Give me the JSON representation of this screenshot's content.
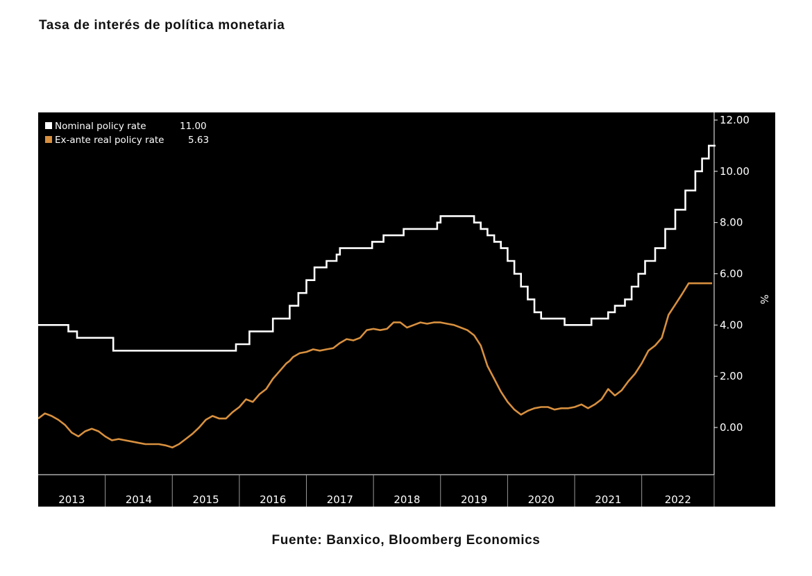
{
  "title": "Tasa de interés de política monetaria",
  "source": "Fuente: Banxico, Bloomberg Economics",
  "colors": {
    "background": "#000000",
    "nominal": "#ffffff",
    "real": "#d8903f",
    "axis": "#ffffff"
  },
  "chart_data": {
    "type": "line",
    "title": "",
    "xlabel": "",
    "ylabel": "%",
    "ylim": [
      -2,
      12
    ],
    "xlim": [
      2013.0,
      2023.08
    ],
    "y_ticks": [
      12,
      10,
      8,
      6,
      4,
      2,
      0
    ],
    "y_tick_labels": [
      "12.00",
      "10.00",
      "8.00",
      "6.00",
      "4.00",
      "2.00",
      "0.00"
    ],
    "x_tick_labels": [
      "2013",
      "2014",
      "2015",
      "2016",
      "2017",
      "2018",
      "2019",
      "2020",
      "2021",
      "2022"
    ],
    "x_ticks": [
      2013,
      2014,
      2015,
      2016,
      2017,
      2018,
      2019,
      2020,
      2021,
      2022
    ],
    "grid": false,
    "legend_position": "top-left",
    "series": [
      {
        "name": "Nominal policy rate",
        "legend_value": "11.00",
        "color": "#ffffff",
        "step": true,
        "x": [
          2013.0,
          2013.45,
          2013.58,
          2014.12,
          2014.5,
          2014.7,
          2014.95,
          2015.95,
          2016.15,
          2016.5,
          2016.75,
          2016.88,
          2017.0,
          2017.12,
          2017.3,
          2017.45,
          2017.5,
          2017.98,
          2018.15,
          2018.45,
          2018.95,
          2019.0,
          2019.5,
          2019.6,
          2019.7,
          2019.8,
          2019.9,
          2020.0,
          2020.1,
          2020.2,
          2020.3,
          2020.4,
          2020.5,
          2020.6,
          2020.85,
          2021.0,
          2021.25,
          2021.5,
          2021.6,
          2021.75,
          2021.85,
          2021.95,
          2022.05,
          2022.2,
          2022.35,
          2022.5,
          2022.65,
          2022.8,
          2022.9,
          2023.0,
          2023.1
        ],
        "y": [
          4.0,
          3.75,
          3.5,
          3.0,
          3.0,
          3.0,
          3.0,
          3.25,
          3.75,
          4.25,
          4.75,
          5.25,
          5.75,
          6.25,
          6.5,
          6.75,
          7.0,
          7.25,
          7.5,
          7.75,
          8.0,
          8.25,
          8.0,
          7.75,
          7.5,
          7.25,
          7.0,
          6.5,
          6.0,
          5.5,
          5.0,
          4.5,
          4.25,
          4.25,
          4.0,
          4.0,
          4.25,
          4.5,
          4.75,
          5.0,
          5.5,
          6.0,
          6.5,
          7.0,
          7.75,
          8.5,
          9.25,
          10.0,
          10.5,
          11.0,
          11.0
        ]
      },
      {
        "name": "Ex-ante real policy rate",
        "legend_value": "5.63",
        "color": "#d8903f",
        "step": false,
        "x": [
          2013.0,
          2013.1,
          2013.2,
          2013.3,
          2013.4,
          2013.5,
          2013.6,
          2013.7,
          2013.8,
          2013.9,
          2014.0,
          2014.1,
          2014.2,
          2014.3,
          2014.4,
          2014.5,
          2014.6,
          2014.7,
          2014.8,
          2014.9,
          2015.0,
          2015.1,
          2015.2,
          2015.3,
          2015.4,
          2015.5,
          2015.6,
          2015.7,
          2015.8,
          2015.9,
          2016.0,
          2016.1,
          2016.2,
          2016.3,
          2016.4,
          2016.5,
          2016.6,
          2016.7,
          2016.75,
          2016.8,
          2016.9,
          2017.0,
          2017.1,
          2017.2,
          2017.3,
          2017.4,
          2017.5,
          2017.6,
          2017.7,
          2017.8,
          2017.9,
          2018.0,
          2018.1,
          2018.2,
          2018.3,
          2018.4,
          2018.5,
          2018.6,
          2018.7,
          2018.8,
          2018.9,
          2019.0,
          2019.1,
          2019.2,
          2019.3,
          2019.4,
          2019.5,
          2019.6,
          2019.7,
          2019.8,
          2019.9,
          2020.0,
          2020.1,
          2020.2,
          2020.3,
          2020.4,
          2020.5,
          2020.6,
          2020.7,
          2020.8,
          2020.9,
          2021.0,
          2021.1,
          2021.2,
          2021.3,
          2021.4,
          2021.5,
          2021.6,
          2021.7,
          2021.8,
          2021.9,
          2022.0,
          2022.1,
          2022.2,
          2022.3,
          2022.4,
          2022.5,
          2022.6,
          2022.7,
          2022.8,
          2022.9,
          2023.0,
          2023.05
        ],
        "y": [
          0.35,
          0.55,
          0.45,
          0.3,
          0.1,
          -0.2,
          -0.35,
          -0.15,
          -0.05,
          -0.15,
          -0.35,
          -0.5,
          -0.45,
          -0.5,
          -0.55,
          -0.6,
          -0.65,
          -0.65,
          -0.65,
          -0.7,
          -0.78,
          -0.65,
          -0.45,
          -0.25,
          0.0,
          0.3,
          0.45,
          0.35,
          0.35,
          0.6,
          0.8,
          1.1,
          1.0,
          1.3,
          1.5,
          1.9,
          2.2,
          2.5,
          2.6,
          2.75,
          2.9,
          2.95,
          3.05,
          3.0,
          3.05,
          3.1,
          3.3,
          3.45,
          3.4,
          3.5,
          3.8,
          3.85,
          3.8,
          3.85,
          4.1,
          4.1,
          3.9,
          4.0,
          4.1,
          4.05,
          4.1,
          4.1,
          4.05,
          4.0,
          3.9,
          3.8,
          3.6,
          3.2,
          2.4,
          1.9,
          1.4,
          1.0,
          0.7,
          0.5,
          0.65,
          0.75,
          0.8,
          0.8,
          0.7,
          0.75,
          0.75,
          0.8,
          0.9,
          0.75,
          0.9,
          1.1,
          1.5,
          1.25,
          1.45,
          1.8,
          2.1,
          2.5,
          3.0,
          3.2,
          3.5,
          4.4,
          4.8,
          5.2,
          5.63,
          5.63,
          5.63,
          5.63,
          5.63
        ]
      }
    ]
  }
}
